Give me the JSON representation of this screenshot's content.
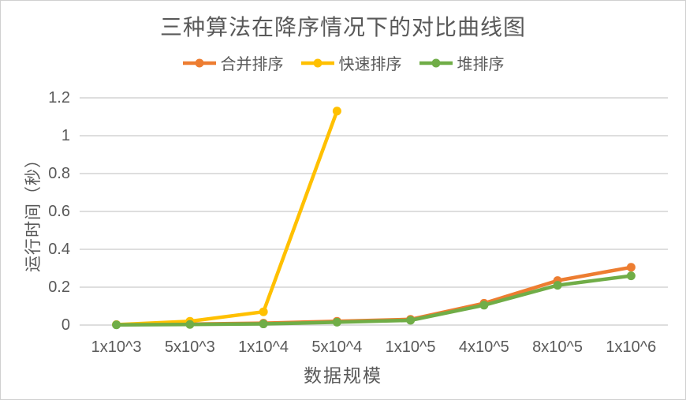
{
  "frame": {
    "background": "#ffffff",
    "border_color": "#d0d0d0"
  },
  "chart_data": {
    "type": "line",
    "title": "三种算法在降序情况下的对比曲线图",
    "xlabel": "数据规模",
    "ylabel": "运行时间（秒）",
    "categories": [
      "1x10^3",
      "5x10^3",
      "1x10^4",
      "5x10^4",
      "1x10^5",
      "4x10^5",
      "8x10^5",
      "1x10^6"
    ],
    "ylim": [
      0,
      1.2
    ],
    "yticks": [
      0,
      0.2,
      0.4,
      0.6,
      0.8,
      1,
      1.2
    ],
    "ytick_labels": [
      "0",
      "0.2",
      "0.4",
      "0.6",
      "0.8",
      "1",
      "1.2"
    ],
    "grid": true,
    "legend_position": "top-center",
    "text_color": "#595959",
    "gridline_color": "#d9d9d9",
    "series": [
      {
        "key": "merge-sort",
        "name": "合并排序",
        "color": "#ED7D31",
        "values": [
          0.002,
          0.005,
          0.01,
          0.02,
          0.03,
          0.115,
          0.235,
          0.305
        ]
      },
      {
        "key": "quick-sort",
        "name": "快速排序",
        "color": "#FFC000",
        "values": [
          0.002,
          0.02,
          0.07,
          1.13,
          null,
          null,
          null,
          null
        ]
      },
      {
        "key": "heap-sort",
        "name": "堆排序",
        "color": "#70AD47",
        "values": [
          0.001,
          0.003,
          0.006,
          0.015,
          0.025,
          0.105,
          0.21,
          0.26
        ]
      }
    ]
  }
}
